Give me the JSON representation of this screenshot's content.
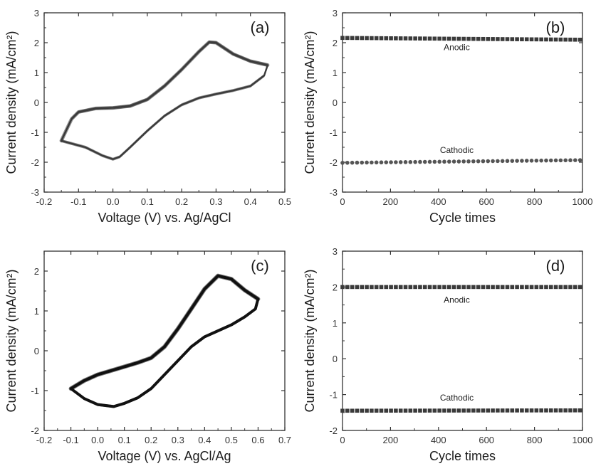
{
  "chart_data": [
    {
      "id": "a",
      "type": "line",
      "label": "(a)",
      "xlabel": "Voltage (V) vs. Ag/AgCl",
      "ylabel": "Current density (mA/cm²)",
      "xlim": [
        -0.2,
        0.5
      ],
      "ylim": [
        -3,
        3
      ],
      "xticks": [
        -0.2,
        -0.1,
        0.0,
        0.1,
        0.2,
        0.3,
        0.4,
        0.5
      ],
      "yticks": [
        -3,
        -2,
        -1,
        0,
        1,
        2,
        3
      ],
      "series": [
        {
          "color": "#3a3a3a",
          "forward": [
            [
              -0.15,
              -1.28
            ],
            [
              -0.12,
              -0.55
            ],
            [
              -0.1,
              -0.32
            ],
            [
              -0.05,
              -0.2
            ],
            [
              0.0,
              -0.18
            ],
            [
              0.05,
              -0.12
            ],
            [
              0.1,
              0.1
            ],
            [
              0.15,
              0.55
            ],
            [
              0.2,
              1.1
            ],
            [
              0.25,
              1.7
            ],
            [
              0.28,
              2.02
            ],
            [
              0.3,
              2.0
            ],
            [
              0.35,
              1.62
            ],
            [
              0.4,
              1.38
            ],
            [
              0.45,
              1.25
            ]
          ],
          "reverse": [
            [
              0.45,
              1.25
            ],
            [
              0.44,
              0.9
            ],
            [
              0.4,
              0.55
            ],
            [
              0.35,
              0.4
            ],
            [
              0.3,
              0.28
            ],
            [
              0.25,
              0.15
            ],
            [
              0.2,
              -0.08
            ],
            [
              0.15,
              -0.45
            ],
            [
              0.1,
              -0.95
            ],
            [
              0.05,
              -1.5
            ],
            [
              0.02,
              -1.82
            ],
            [
              0.0,
              -1.9
            ],
            [
              -0.03,
              -1.78
            ],
            [
              -0.08,
              -1.5
            ],
            [
              -0.15,
              -1.28
            ]
          ]
        }
      ]
    },
    {
      "id": "b",
      "type": "scatter",
      "label": "(b)",
      "xlabel": "Cycle times",
      "ylabel": "Current density (mA/cm²)",
      "xlim": [
        0,
        1000
      ],
      "ylim": [
        -3,
        3
      ],
      "xticks": [
        0,
        200,
        400,
        600,
        800,
        1000
      ],
      "yticks": [
        -3,
        -2,
        -1,
        0,
        1,
        2,
        3
      ],
      "series": [
        {
          "name": "Anodic",
          "marker": "square",
          "x_start": 0,
          "x_end": 990,
          "n": 50,
          "y_start": 2.16,
          "y_end": 2.1
        },
        {
          "name": "Cathodic",
          "marker": "circle",
          "x_start": 0,
          "x_end": 990,
          "n": 50,
          "y_start": -2.02,
          "y_end": -1.93
        }
      ]
    },
    {
      "id": "c",
      "type": "line",
      "label": "(c)",
      "xlabel": "Voltage (V) vs. AgCl/Ag",
      "ylabel": "Current density (mA/cm²)",
      "xlim": [
        -0.2,
        0.7
      ],
      "ylim": [
        -2,
        2.5
      ],
      "xticks": [
        -0.2,
        -0.1,
        0.0,
        0.1,
        0.2,
        0.3,
        0.4,
        0.5,
        0.6,
        0.7
      ],
      "yticks": [
        -2,
        -1,
        0,
        1,
        2
      ],
      "series": [
        {
          "color": "#111111",
          "forward": [
            [
              -0.1,
              -0.95
            ],
            [
              -0.05,
              -0.75
            ],
            [
              0.0,
              -0.6
            ],
            [
              0.05,
              -0.5
            ],
            [
              0.1,
              -0.4
            ],
            [
              0.15,
              -0.3
            ],
            [
              0.2,
              -0.18
            ],
            [
              0.25,
              0.1
            ],
            [
              0.3,
              0.55
            ],
            [
              0.35,
              1.05
            ],
            [
              0.4,
              1.55
            ],
            [
              0.45,
              1.88
            ],
            [
              0.5,
              1.8
            ],
            [
              0.55,
              1.52
            ],
            [
              0.6,
              1.3
            ]
          ],
          "reverse": [
            [
              0.6,
              1.3
            ],
            [
              0.59,
              1.05
            ],
            [
              0.55,
              0.85
            ],
            [
              0.5,
              0.65
            ],
            [
              0.45,
              0.5
            ],
            [
              0.4,
              0.35
            ],
            [
              0.35,
              0.1
            ],
            [
              0.3,
              -0.25
            ],
            [
              0.25,
              -0.6
            ],
            [
              0.2,
              -0.95
            ],
            [
              0.15,
              -1.18
            ],
            [
              0.1,
              -1.32
            ],
            [
              0.06,
              -1.4
            ],
            [
              0.0,
              -1.35
            ],
            [
              -0.05,
              -1.2
            ],
            [
              -0.1,
              -0.95
            ]
          ]
        }
      ]
    },
    {
      "id": "d",
      "type": "scatter",
      "label": "(d)",
      "xlabel": "Cycle times",
      "ylabel": "Current density (mA/cm²)",
      "xlim": [
        0,
        1000
      ],
      "ylim": [
        -2,
        3
      ],
      "xticks": [
        0,
        200,
        400,
        600,
        800,
        1000
      ],
      "yticks": [
        -2,
        -1,
        0,
        1,
        2,
        3
      ],
      "series": [
        {
          "name": "Anodic",
          "marker": "square",
          "x_start": 0,
          "x_end": 990,
          "n": 50,
          "y_start": 2.0,
          "y_end": 2.0
        },
        {
          "name": "Cathodic",
          "marker": "square",
          "x_start": 0,
          "x_end": 990,
          "n": 50,
          "y_start": -1.45,
          "y_end": -1.44
        }
      ]
    }
  ]
}
